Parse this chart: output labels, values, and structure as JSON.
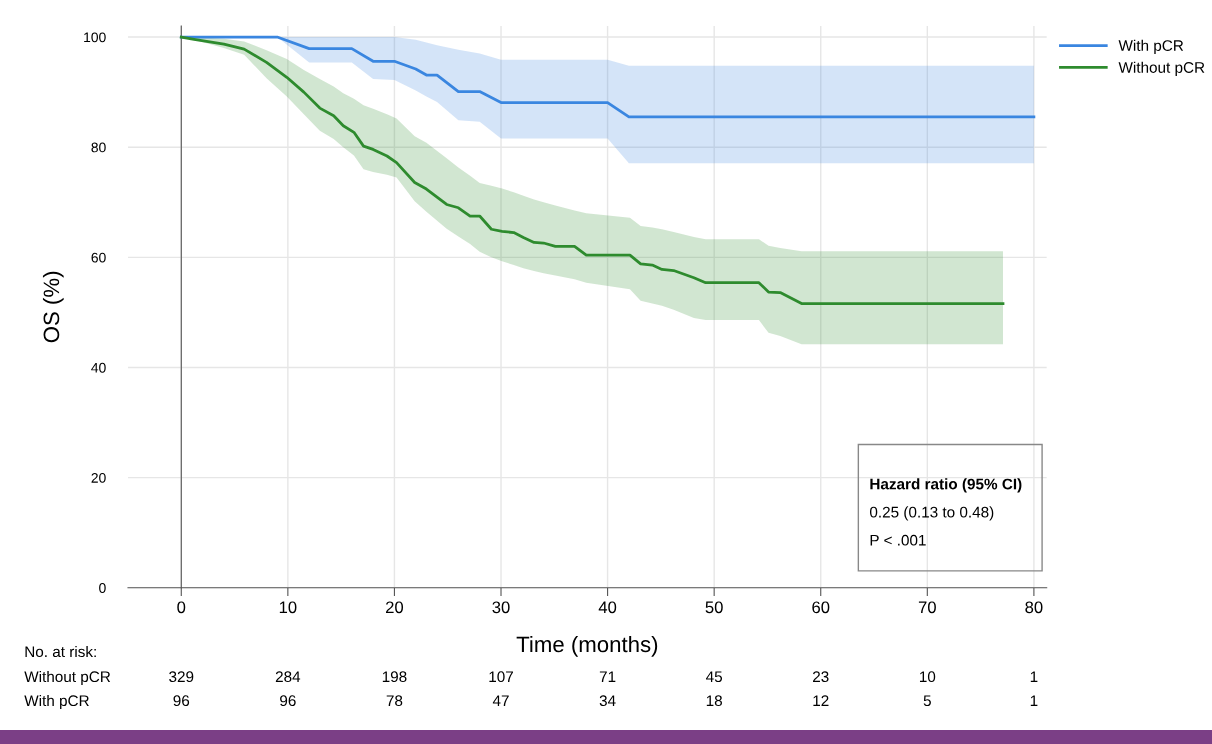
{
  "chart_data": {
    "type": "line",
    "xlabel": "Time (months)",
    "ylabel": "OS (%)",
    "xlim": [
      -5,
      81.2
    ],
    "ylim": [
      0,
      102
    ],
    "xticks": [
      0,
      10,
      20,
      30,
      40,
      50,
      60,
      70,
      80
    ],
    "yticks": [
      0,
      20,
      40,
      60,
      80,
      100
    ],
    "grid": true,
    "legend": "top right",
    "marker": "none",
    "line_style": "solid",
    "series": [
      {
        "name": "With pCR",
        "color": "#3a86e0",
        "x": [
          0,
          9,
          12,
          16,
          18,
          20,
          22,
          23,
          24,
          26,
          28,
          30,
          40,
          42,
          80
        ],
        "values": [
          100,
          100,
          97.9,
          97.9,
          95.6,
          95.6,
          94.2,
          93.1,
          93.1,
          90.1,
          90.1,
          88.1,
          88.1,
          85.5,
          85.5
        ],
        "upper": [
          100,
          100,
          100,
          100,
          100,
          100,
          99.5,
          99,
          98.5,
          97.7,
          97,
          95.9,
          95.9,
          94.8,
          94.8
        ],
        "lower": [
          100,
          100,
          95.4,
          95.4,
          92.4,
          92.2,
          90.3,
          89.2,
          88.2,
          84.9,
          84.6,
          81.6,
          81.6,
          77.1,
          77.1
        ]
      },
      {
        "name": "Without pCR",
        "color": "#2e8b2e",
        "x": [
          0,
          1.2,
          4,
          5.9,
          8,
          9.9,
          11.5,
          13,
          14.3,
          15.2,
          16.2,
          17.1,
          18,
          19.3,
          20.2,
          21.9,
          23,
          24.9,
          26,
          27.1,
          28,
          29.1,
          30.1,
          31.2,
          32.1,
          33.1,
          34,
          35.1,
          36.9,
          38,
          42.1,
          43.1,
          44.2,
          45.1,
          46.2,
          48.1,
          49.2,
          54.2,
          55.1,
          56.2,
          58.2,
          77.1
        ],
        "values": [
          100,
          99.6,
          98.7,
          97.8,
          95.4,
          92.7,
          90,
          87.1,
          85.7,
          83.9,
          82.7,
          80.2,
          79.6,
          78.4,
          77.2,
          73.6,
          72.4,
          69.6,
          69,
          67.5,
          67.5,
          65.1,
          64.7,
          64.5,
          63.6,
          62.7,
          62.6,
          62,
          62,
          60.4,
          60.4,
          58.8,
          58.6,
          57.8,
          57.6,
          56.3,
          55.4,
          55.4,
          53.7,
          53.6,
          51.6,
          51.6
        ],
        "upper": [
          100,
          100,
          99.7,
          99.2,
          97.6,
          96,
          94,
          92.4,
          91,
          89.8,
          88.8,
          87.6,
          87,
          86,
          85.2,
          82,
          80.8,
          78,
          76.3,
          74.8,
          73.5,
          73,
          72.5,
          71.8,
          71.2,
          70.5,
          70,
          69.4,
          68.5,
          68,
          67.2,
          65.7,
          65.4,
          65.1,
          64.6,
          63.7,
          63.3,
          63.3,
          62.1,
          61.7,
          61.1,
          61.1
        ],
        "lower": [
          100,
          99.5,
          98,
          96.8,
          92.5,
          89.2,
          86,
          83,
          81.5,
          80,
          78.5,
          76,
          75.5,
          75,
          74.5,
          70.2,
          68.3,
          65.2,
          63.8,
          62.4,
          61,
          60,
          59.3,
          58.6,
          58,
          57.5,
          57.1,
          56.7,
          56,
          55.4,
          54.2,
          52.1,
          51.6,
          51.2,
          50.5,
          49,
          48.6,
          48.6,
          46.3,
          45.7,
          44.2,
          44.2
        ]
      }
    ],
    "annotations": [
      "Hazard ratio (95% CI)",
      "0.25 (0.13 to 0.48)",
      "P < .001",
      "No. at risk:",
      "Without pCR",
      "329",
      "284",
      "198",
      "107",
      "71",
      "45",
      "23",
      "10",
      "1",
      "With pCR",
      "96",
      "96",
      "78",
      "47",
      "34",
      "18",
      "12",
      "5",
      "1"
    ]
  }
}
